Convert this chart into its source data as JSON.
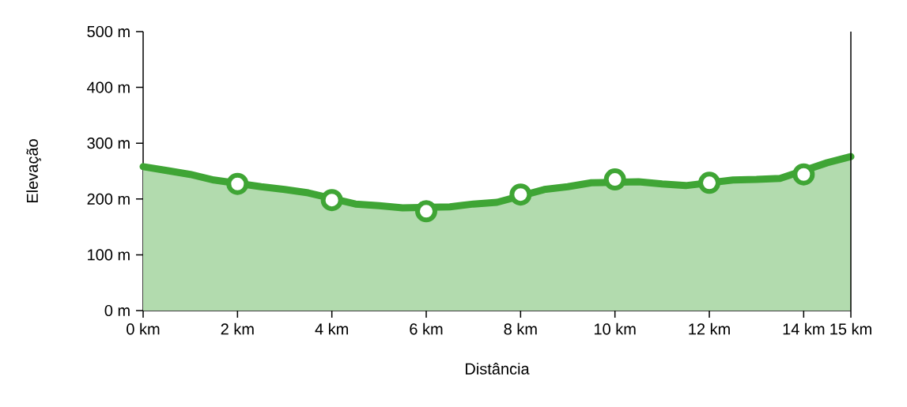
{
  "chart_data": {
    "type": "area",
    "xlabel": "Distância",
    "ylabel": "Elevação",
    "series": [
      {
        "color": "#3fa535",
        "x": [
          0,
          0.5,
          1,
          1.5,
          2.5,
          3,
          3.5,
          4.5,
          5,
          5.5,
          6.5,
          7,
          7.5,
          8.5,
          9,
          9.5,
          10.5,
          11,
          11.5,
          12.5,
          13,
          13.5,
          14.5,
          15
        ],
        "values": [
          258,
          251,
          244,
          234,
          222,
          217,
          211,
          191,
          188,
          184,
          186,
          191,
          194,
          217,
          222,
          229,
          231,
          227,
          224,
          234,
          235,
          237,
          265,
          276
        ]
      },
      {
        "type": "scatter",
        "color": "#3fa535",
        "marker": "circle",
        "x": [
          2,
          4,
          6,
          8,
          10,
          12,
          14
        ],
        "values": [
          227,
          198,
          178,
          208,
          235,
          229,
          244
        ]
      }
    ],
    "xlim": [
      0,
      15
    ],
    "xticks": [
      {
        "value": 0,
        "label": "0 km"
      },
      {
        "value": 2,
        "label": "2 km"
      },
      {
        "value": 4,
        "label": "4 km"
      },
      {
        "value": 6,
        "label": "6 km"
      },
      {
        "value": 8,
        "label": "8 km"
      },
      {
        "value": 10,
        "label": "10 km"
      },
      {
        "value": 12,
        "label": "12 km"
      },
      {
        "value": 14,
        "label": "14 km"
      },
      {
        "value": 15,
        "label": "15 km"
      }
    ],
    "ylim": [
      0,
      500
    ],
    "yticks": [
      {
        "value": 0,
        "label": "0 m"
      },
      {
        "value": 100,
        "label": "100 m"
      },
      {
        "value": 200,
        "label": "200 m"
      },
      {
        "value": 300,
        "label": "300 m"
      },
      {
        "value": 400,
        "label": "400 m"
      },
      {
        "value": 500,
        "label": "500 m"
      }
    ]
  }
}
